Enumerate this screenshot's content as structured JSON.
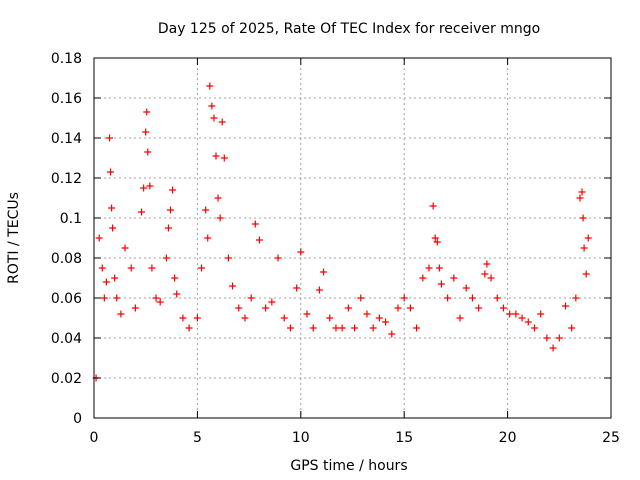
{
  "chart_data": {
    "type": "scatter",
    "title": "Day 125 of 2025, Rate Of TEC Index for receiver mngo",
    "xlabel": "GPS time / hours",
    "ylabel": "ROTI / TECUs",
    "xlim": [
      0,
      25
    ],
    "ylim": [
      0,
      0.18
    ],
    "xticks": [
      0,
      5,
      10,
      15,
      20,
      25
    ],
    "xtick_labels": [
      "0",
      "5",
      "10",
      "15",
      "20",
      "25"
    ],
    "yticks": [
      0,
      0.02,
      0.04,
      0.06,
      0.08,
      0.1,
      0.12,
      0.14,
      0.16,
      0.18
    ],
    "ytick_labels": [
      "0",
      "0.02",
      "0.04",
      "0.06",
      "0.08",
      "0.1",
      "0.12",
      "0.14",
      "0.16",
      "0.18"
    ],
    "grid": true,
    "marker": "+",
    "marker_color": "#ff0000",
    "series": [
      {
        "name": "ROTI",
        "x": [
          0.1,
          0.25,
          0.4,
          0.5,
          0.6,
          0.75,
          0.8,
          0.85,
          0.9,
          1.0,
          1.1,
          1.3,
          1.5,
          1.8,
          2.0,
          2.3,
          2.4,
          2.5,
          2.55,
          2.6,
          2.7,
          2.8,
          3.0,
          3.2,
          3.5,
          3.6,
          3.7,
          3.8,
          3.9,
          4.0,
          4.3,
          4.6,
          5.0,
          5.2,
          5.4,
          5.5,
          5.6,
          5.7,
          5.8,
          5.9,
          6.0,
          6.1,
          6.2,
          6.3,
          6.5,
          6.7,
          7.0,
          7.3,
          7.6,
          7.8,
          8.0,
          8.3,
          8.6,
          8.9,
          9.2,
          9.5,
          9.8,
          10.0,
          10.3,
          10.6,
          10.9,
          11.1,
          11.4,
          11.7,
          12.0,
          12.3,
          12.6,
          12.9,
          13.2,
          13.5,
          13.8,
          14.1,
          14.4,
          14.7,
          15.0,
          15.3,
          15.6,
          15.9,
          16.2,
          16.4,
          16.5,
          16.6,
          16.7,
          16.8,
          17.1,
          17.4,
          17.7,
          18.0,
          18.3,
          18.6,
          18.9,
          19.0,
          19.2,
          19.5,
          19.8,
          20.1,
          20.4,
          20.7,
          21.0,
          21.3,
          21.6,
          21.9,
          22.2,
          22.5,
          22.8,
          23.1,
          23.3,
          23.5,
          23.6,
          23.65,
          23.7,
          23.8,
          23.9
        ],
        "y": [
          0.02,
          0.09,
          0.075,
          0.06,
          0.068,
          0.14,
          0.123,
          0.105,
          0.095,
          0.07,
          0.06,
          0.052,
          0.085,
          0.075,
          0.055,
          0.103,
          0.115,
          0.143,
          0.153,
          0.133,
          0.116,
          0.075,
          0.06,
          0.058,
          0.08,
          0.095,
          0.104,
          0.114,
          0.07,
          0.062,
          0.05,
          0.045,
          0.05,
          0.075,
          0.104,
          0.09,
          0.166,
          0.156,
          0.15,
          0.131,
          0.11,
          0.1,
          0.148,
          0.13,
          0.08,
          0.066,
          0.055,
          0.05,
          0.06,
          0.097,
          0.089,
          0.055,
          0.058,
          0.08,
          0.05,
          0.045,
          0.065,
          0.083,
          0.052,
          0.045,
          0.064,
          0.073,
          0.05,
          0.045,
          0.045,
          0.055,
          0.045,
          0.06,
          0.052,
          0.045,
          0.05,
          0.048,
          0.042,
          0.055,
          0.06,
          0.055,
          0.045,
          0.07,
          0.075,
          0.106,
          0.09,
          0.088,
          0.075,
          0.067,
          0.06,
          0.07,
          0.05,
          0.065,
          0.06,
          0.055,
          0.072,
          0.077,
          0.07,
          0.06,
          0.055,
          0.052,
          0.052,
          0.05,
          0.048,
          0.045,
          0.052,
          0.04,
          0.035,
          0.04,
          0.056,
          0.045,
          0.06,
          0.11,
          0.113,
          0.1,
          0.085,
          0.072,
          0.09
        ]
      }
    ]
  }
}
